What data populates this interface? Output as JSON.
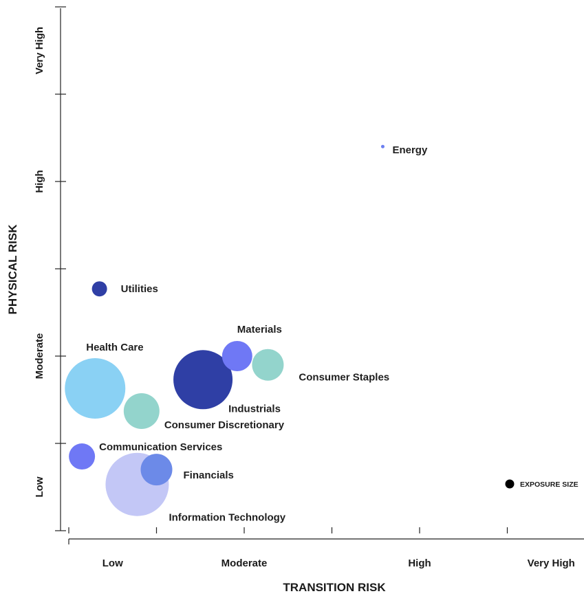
{
  "chart_data": {
    "type": "scatter",
    "subtype": "bubble",
    "xlabel": "TRANSITION RISK",
    "ylabel": "PHYSICAL RISK",
    "xlim": [
      0,
      6
    ],
    "ylim": [
      0,
      6
    ],
    "x_ticks": [
      0,
      1,
      2,
      3,
      4,
      5,
      6
    ],
    "y_ticks": [
      0,
      1,
      2,
      3,
      4,
      5,
      6
    ],
    "x_category_labels": [
      {
        "label": "Low",
        "at": 0.5
      },
      {
        "label": "Moderate",
        "at": 2.0
      },
      {
        "label": "High",
        "at": 4.0
      },
      {
        "label": "Very High",
        "at": 5.5
      }
    ],
    "y_category_labels": [
      {
        "label": "Low",
        "at": 0.5
      },
      {
        "label": "Moderate",
        "at": 2.0
      },
      {
        "label": "High",
        "at": 4.0
      },
      {
        "label": "Very High",
        "at": 5.5
      }
    ],
    "grid": false,
    "points": [
      {
        "name": "Energy",
        "x": 3.58,
        "y": 4.4,
        "size": 0.5,
        "color": "#6c7ff0"
      },
      {
        "name": "Utilities",
        "x": 0.35,
        "y": 2.77,
        "size": 2.2,
        "color": "#2f3fa5"
      },
      {
        "name": "Materials",
        "x": 1.92,
        "y": 2.0,
        "size": 4.4,
        "color": "#6f78f5"
      },
      {
        "name": "Consumer Staples",
        "x": 2.27,
        "y": 1.9,
        "size": 4.6,
        "color": "#93d4cc"
      },
      {
        "name": "Industrials",
        "x": 1.53,
        "y": 1.73,
        "size": 8.6,
        "color": "#2f3fa5"
      },
      {
        "name": "Health Care",
        "x": 0.3,
        "y": 1.63,
        "size": 8.8,
        "color": "#8ad1f4"
      },
      {
        "name": "Consumer Discretionary",
        "x": 0.83,
        "y": 1.37,
        "size": 5.2,
        "color": "#93d4cc"
      },
      {
        "name": "Communication Services",
        "x": 0.15,
        "y": 0.85,
        "size": 3.8,
        "color": "#6f78f5"
      },
      {
        "name": "Financials",
        "x": 1.0,
        "y": 0.7,
        "size": 4.6,
        "color": "#6c8ae8"
      },
      {
        "name": "Information Technology",
        "x": 0.78,
        "y": 0.53,
        "size": 9.2,
        "color": "#c3c7f6"
      }
    ],
    "legend": {
      "label": "EXPOSURE SIZE",
      "color": "#000000",
      "placement": "right"
    }
  }
}
